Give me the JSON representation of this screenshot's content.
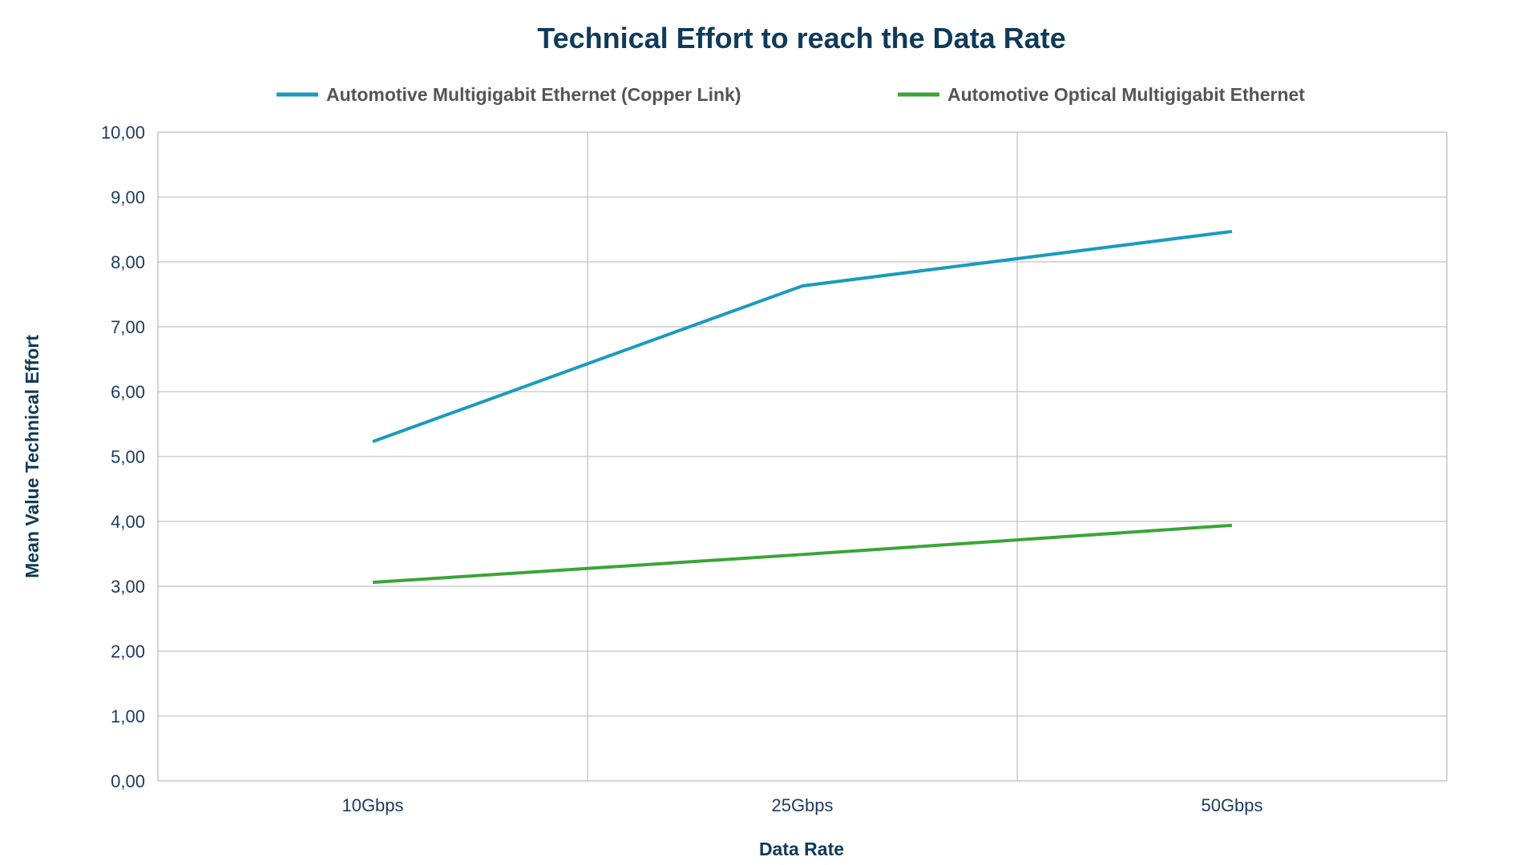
{
  "chart_data": {
    "type": "line",
    "title": "Technical Effort to reach the Data Rate",
    "xlabel": "Data Rate",
    "ylabel": "Mean Value Technical Effort",
    "categories": [
      "10Gbps",
      "25Gbps",
      "50Gbps"
    ],
    "series": [
      {
        "name": "Automotive Multigigabit Ethernet (Copper Link)",
        "values": [
          5.23,
          7.63,
          8.47
        ],
        "color": "#1a9bbd"
      },
      {
        "name": "Automotive Optical Multigigabit Ethernet",
        "values": [
          3.06,
          3.49,
          3.94
        ],
        "color": "#3aa537"
      }
    ],
    "ylim": [
      0,
      10
    ],
    "yticks": [
      0,
      1,
      2,
      3,
      4,
      5,
      6,
      7,
      8,
      9,
      10
    ],
    "ytick_labels": [
      "0,00",
      "1,00",
      "2,00",
      "3,00",
      "4,00",
      "5,00",
      "6,00",
      "7,00",
      "8,00",
      "9,00",
      "10,00"
    ],
    "grid": true,
    "legend_position": "top"
  },
  "colors": {
    "title": "#0f3a5a",
    "axis_text": "#1d3a5c",
    "grid": "#c4c4c4",
    "plot_border": "#bdbdbd"
  }
}
